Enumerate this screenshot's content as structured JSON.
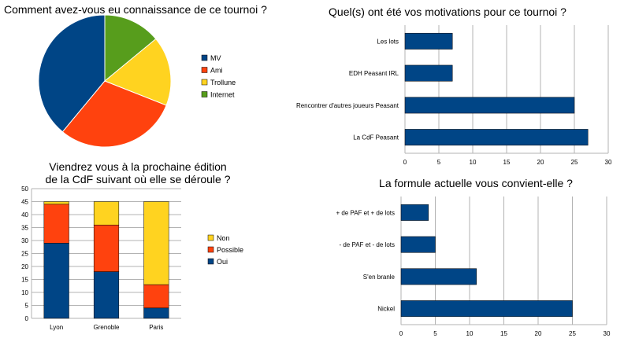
{
  "chart_data": [
    {
      "type": "pie",
      "title": "Comment avez-vous eu connaissance de ce tournoi ?",
      "categories": [
        "MV",
        "Ami",
        "Trollune",
        "Internet"
      ],
      "values": [
        39,
        30,
        17,
        14
      ],
      "colors": [
        "#004586",
        "#ff420e",
        "#ffd320",
        "#579d1c"
      ],
      "legend": "right"
    },
    {
      "type": "bar",
      "orientation": "horizontal",
      "title": "Quel(s) ont été vos motivations pour ce tournoi ?",
      "categories": [
        "Les lots",
        "EDH Peasant IRL",
        "Rencontrer d'autres joueurs Peasant",
        "La CdF Peasant"
      ],
      "values": [
        7,
        7,
        25,
        27
      ],
      "xlim": [
        0,
        30
      ],
      "xticks": [
        "0",
        "5",
        "10",
        "15",
        "20",
        "25",
        "30"
      ],
      "grid": true,
      "color": "#004586"
    },
    {
      "type": "bar",
      "stacked": true,
      "title": "Viendrez vous à la prochaine édition de la CdF suivant où elle se déroule ?",
      "title_lines": [
        "Viendrez vous à la prochaine édition",
        "de la CdF suivant où elle se déroule ?"
      ],
      "categories": [
        "Lyon",
        "Grenoble",
        "Paris"
      ],
      "series": [
        {
          "name": "Oui",
          "values": [
            29,
            18,
            4
          ],
          "color": "#004586"
        },
        {
          "name": "Possible",
          "values": [
            15,
            18,
            9
          ],
          "color": "#ff420e"
        },
        {
          "name": "Non",
          "values": [
            1,
            9,
            32
          ],
          "color": "#ffd320"
        }
      ],
      "ylim": [
        0,
        50
      ],
      "yticks": [
        "0",
        "5",
        "10",
        "15",
        "20",
        "25",
        "30",
        "35",
        "40",
        "45",
        "50"
      ],
      "grid": true,
      "legend": "right"
    },
    {
      "type": "bar",
      "orientation": "horizontal",
      "title": "La formule actuelle vous convient-elle ?",
      "categories": [
        "+ de PAF et + de lots",
        "- de PAF et - de lots",
        "S'en branle",
        "Nickel"
      ],
      "values": [
        4,
        5,
        11,
        25
      ],
      "xlim": [
        0,
        30
      ],
      "xticks": [
        "0",
        "5",
        "10",
        "15",
        "20",
        "25",
        "30"
      ],
      "grid": true,
      "color": "#004586"
    }
  ]
}
